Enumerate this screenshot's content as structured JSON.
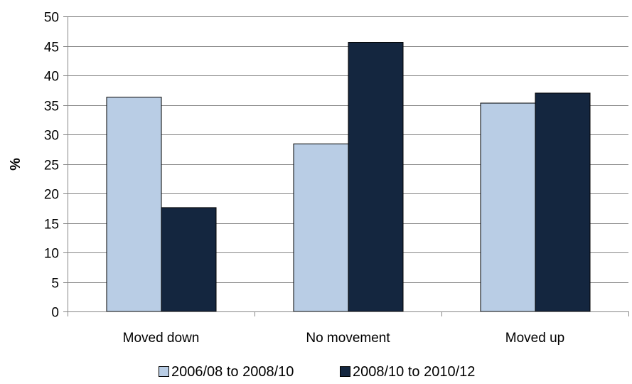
{
  "chart_data": {
    "type": "bar",
    "categories": [
      "Moved down",
      "No movement",
      "Moved up"
    ],
    "series": [
      {
        "name": "2006/08 to 2008/10",
        "values": [
          36.3,
          28.4,
          35.3
        ],
        "color": "#B9CDE5"
      },
      {
        "name": "2008/10 to 2010/12",
        "values": [
          17.6,
          45.6,
          37.0
        ],
        "color": "#14263F"
      }
    ],
    "title": "",
    "xlabel": "",
    "ylabel": "%",
    "ylim": [
      0,
      50
    ],
    "yticks": [
      0,
      5,
      10,
      15,
      20,
      25,
      30,
      35,
      40,
      45,
      50
    ],
    "grid": true,
    "legend_position": "bottom"
  }
}
